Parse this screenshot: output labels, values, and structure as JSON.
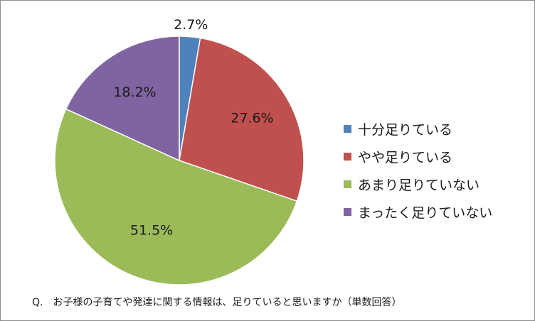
{
  "chart_data": {
    "type": "pie",
    "slices": [
      {
        "label": "十分足りている",
        "value": 2.7,
        "value_label": "2.7%",
        "color": "#4f81bd"
      },
      {
        "label": "やや足りている",
        "value": 27.6,
        "value_label": "27.6%",
        "color": "#c0504d"
      },
      {
        "label": "あまり足りていない",
        "value": 51.5,
        "value_label": "51.5%",
        "color": "#9bbb59"
      },
      {
        "label": "まったく足りていない",
        "value": 18.2,
        "value_label": "18.2%",
        "color": "#8064a2"
      }
    ],
    "legend_position": "right",
    "caption": "Q.　お子様の子育てや発達に関する情報は、足りていると思いますか（単数回答）"
  }
}
